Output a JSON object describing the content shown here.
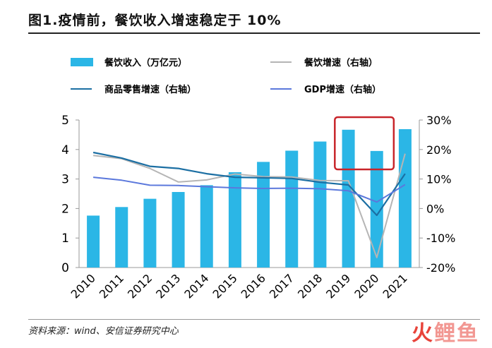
{
  "title": "图1.疫情前，餐饮收入增速稳定于 10%",
  "source": "资料来源：wind、安信证券研究中心",
  "logo": {
    "a": "火",
    "b": "鲤",
    "c": "鱼"
  },
  "chart_data": {
    "type": "bar+line",
    "title": "图1.疫情前，餐饮收入增速稳定于 10%",
    "categories": [
      "2010",
      "2011",
      "2012",
      "2013",
      "2014",
      "2015",
      "2016",
      "2017",
      "2018",
      "2019",
      "2020",
      "2021"
    ],
    "left_axis": {
      "min": 0,
      "max": 5,
      "ticks": [
        "0",
        "1",
        "2",
        "3",
        "4",
        "5"
      ]
    },
    "right_axis": {
      "min": -20,
      "max": 30,
      "ticks": [
        "-20%",
        "-10%",
        "0%",
        "10%",
        "20%",
        "30%"
      ]
    },
    "bars": {
      "name": "餐饮收入（万亿元）",
      "color": "#2bb6e6",
      "values": [
        1.76,
        2.05,
        2.33,
        2.56,
        2.79,
        3.23,
        3.58,
        3.96,
        4.27,
        4.67,
        3.95,
        4.69
      ]
    },
    "lines": [
      {
        "name": "餐饮增速（右轴）",
        "color": "#b5b5b5",
        "values": [
          18.0,
          16.9,
          13.6,
          9.0,
          9.7,
          11.7,
          10.8,
          10.7,
          9.5,
          9.4,
          -16.6,
          18.6
        ]
      },
      {
        "name": "商品零售增速（右轴）",
        "color": "#1c6fa3",
        "values": [
          19.0,
          17.1,
          14.3,
          13.6,
          11.8,
          10.6,
          10.4,
          10.2,
          8.9,
          8.0,
          -2.3,
          11.8
        ]
      },
      {
        "name": "GDP增速（右轴）",
        "color": "#5b78dc",
        "values": [
          10.6,
          9.6,
          7.9,
          7.8,
          7.4,
          7.0,
          6.8,
          6.9,
          6.7,
          6.0,
          2.2,
          8.1
        ]
      }
    ],
    "highlight": {
      "from": "2019",
      "to": "2020",
      "color": "#c8242a"
    },
    "legend_placement": "top",
    "grid": false
  }
}
